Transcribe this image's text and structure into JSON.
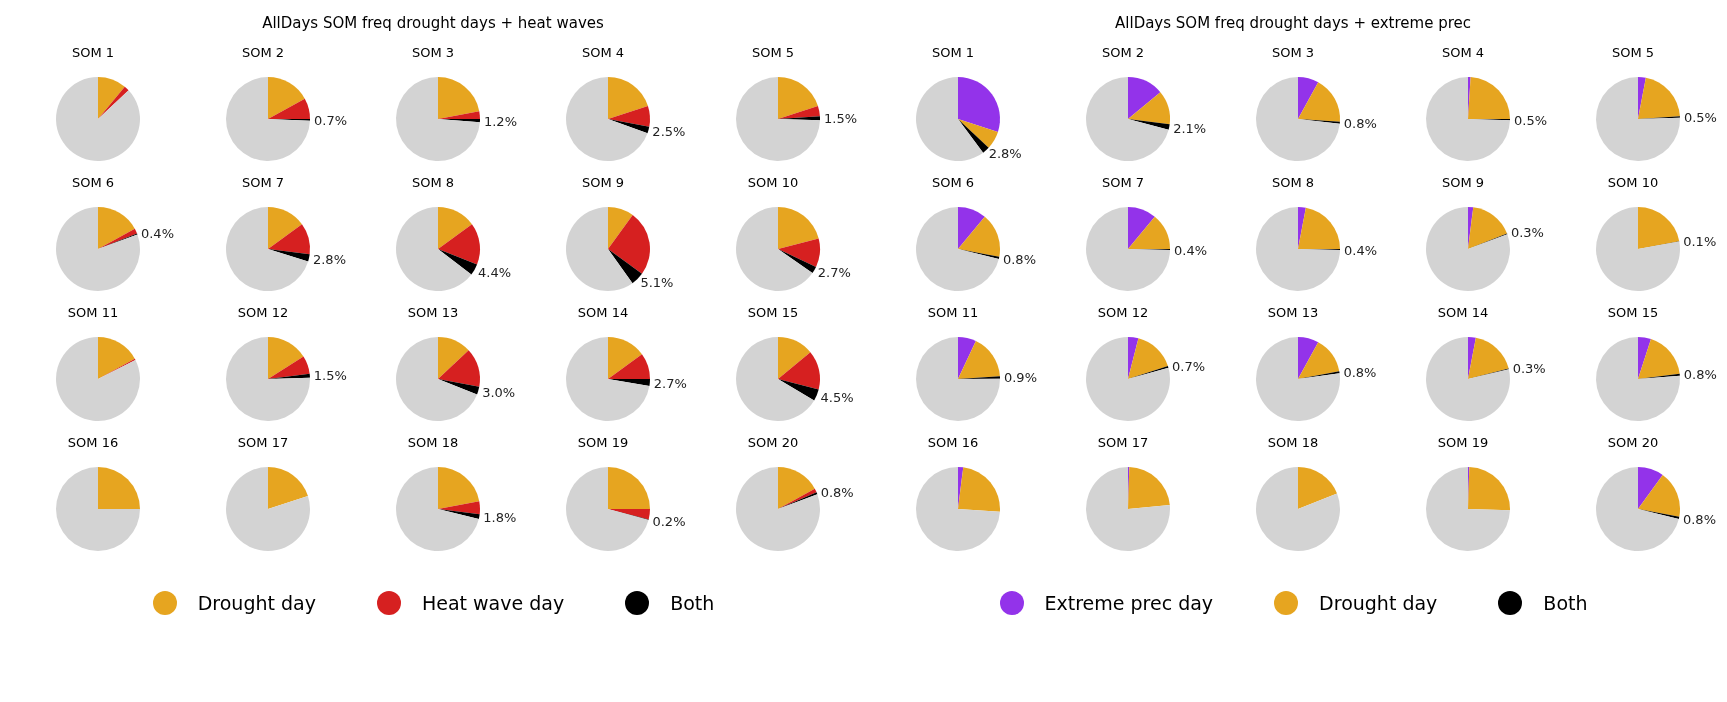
{
  "chart_data": [
    {
      "type": "pie",
      "title": "SOM 1",
      "annotations": [
        "AllDays SOM freq drought days + heat waves"
      ],
      "legend": "bottom",
      "categories": [
        "Drought day",
        "Heat wave day",
        "Both",
        null
      ],
      "colors": [
        "#e6a520",
        "#d62020",
        "#000000",
        "#d3d3d3"
      ],
      "values": [
        11,
        2,
        0,
        87
      ]
    },
    {
      "type": "pie",
      "title": "SOM 2",
      "categories": [
        null,
        null,
        null,
        null
      ],
      "colors": [
        "#e6a520",
        "#d62020",
        "#000000",
        "#d3d3d3"
      ],
      "values": [
        17,
        8,
        0.7,
        74.3
      ],
      "value_labels": [
        null,
        null,
        "0.7%",
        null
      ]
    },
    {
      "type": "pie",
      "title": "SOM 3",
      "categories": [
        null,
        null,
        null,
        null
      ],
      "colors": [
        "#e6a520",
        "#d62020",
        "#000000",
        "#d3d3d3"
      ],
      "values": [
        22,
        3,
        1.2,
        73.8
      ],
      "value_labels": [
        null,
        null,
        "1.2%",
        null
      ]
    },
    {
      "type": "pie",
      "title": "SOM 4",
      "categories": [
        null,
        null,
        null,
        null
      ],
      "colors": [
        "#e6a520",
        "#d62020",
        "#000000",
        "#d3d3d3"
      ],
      "values": [
        20,
        8,
        2.5,
        69.5
      ],
      "value_labels": [
        null,
        null,
        "2.5%",
        null
      ]
    },
    {
      "type": "pie",
      "title": "SOM 5",
      "categories": [
        null,
        null,
        null,
        null
      ],
      "colors": [
        "#e6a520",
        "#d62020",
        "#000000",
        "#d3d3d3"
      ],
      "values": [
        20,
        4,
        1.5,
        74.5
      ],
      "value_labels": [
        null,
        null,
        "1.5%",
        null
      ]
    },
    {
      "type": "pie",
      "title": "SOM 6",
      "categories": [
        null,
        null,
        null,
        null
      ],
      "colors": [
        "#e6a520",
        "#d62020",
        "#000000",
        "#d3d3d3"
      ],
      "values": [
        17,
        2,
        0.4,
        80.6
      ],
      "value_labels": [
        null,
        null,
        "0.4%",
        null
      ]
    },
    {
      "type": "pie",
      "title": "SOM 7",
      "categories": [
        null,
        null,
        null,
        null
      ],
      "colors": [
        "#e6a520",
        "#d62020",
        "#000000",
        "#d3d3d3"
      ],
      "values": [
        15,
        12,
        2.8,
        70.2
      ],
      "value_labels": [
        null,
        null,
        "2.8%",
        null
      ]
    },
    {
      "type": "pie",
      "title": "SOM 8",
      "categories": [
        null,
        null,
        null,
        null
      ],
      "colors": [
        "#e6a520",
        "#d62020",
        "#000000",
        "#d3d3d3"
      ],
      "values": [
        15,
        16,
        4.4,
        64.6
      ],
      "value_labels": [
        null,
        null,
        "4.4%",
        null
      ]
    },
    {
      "type": "pie",
      "title": "SOM 9",
      "categories": [
        null,
        null,
        null,
        null
      ],
      "colors": [
        "#e6a520",
        "#d62020",
        "#000000",
        "#d3d3d3"
      ],
      "values": [
        10,
        25,
        5.1,
        59.9
      ],
      "value_labels": [
        null,
        null,
        "5.1%",
        null
      ]
    },
    {
      "type": "pie",
      "title": "SOM 10",
      "categories": [
        null,
        null,
        null,
        null
      ],
      "colors": [
        "#e6a520",
        "#d62020",
        "#000000",
        "#d3d3d3"
      ],
      "values": [
        21,
        11,
        2.7,
        65.3
      ],
      "value_labels": [
        null,
        null,
        "2.7%",
        null
      ]
    },
    {
      "type": "pie",
      "title": "SOM 11",
      "categories": [
        null,
        null,
        null,
        null
      ],
      "colors": [
        "#e6a520",
        "#d62020",
        "#000000",
        "#d3d3d3"
      ],
      "values": [
        17,
        0.5,
        0,
        82.5
      ]
    },
    {
      "type": "pie",
      "title": "SOM 12",
      "categories": [
        null,
        null,
        null,
        null
      ],
      "colors": [
        "#e6a520",
        "#d62020",
        "#000000",
        "#d3d3d3"
      ],
      "values": [
        16,
        7,
        1.5,
        75.5
      ],
      "value_labels": [
        null,
        null,
        "1.5%",
        null
      ]
    },
    {
      "type": "pie",
      "title": "SOM 13",
      "categories": [
        null,
        null,
        null,
        null
      ],
      "colors": [
        "#e6a520",
        "#d62020",
        "#000000",
        "#d3d3d3"
      ],
      "values": [
        13,
        15,
        3.0,
        69
      ],
      "value_labels": [
        null,
        null,
        "3.0%",
        null
      ]
    },
    {
      "type": "pie",
      "title": "SOM 14",
      "categories": [
        null,
        null,
        null,
        null
      ],
      "colors": [
        "#e6a520",
        "#d62020",
        "#000000",
        "#d3d3d3"
      ],
      "values": [
        15,
        10,
        2.7,
        72.3
      ],
      "value_labels": [
        null,
        null,
        "2.7%",
        null
      ]
    },
    {
      "type": "pie",
      "title": "SOM 15",
      "categories": [
        null,
        null,
        null,
        null
      ],
      "colors": [
        "#e6a520",
        "#d62020",
        "#000000",
        "#d3d3d3"
      ],
      "values": [
        14,
        15,
        4.5,
        66.5
      ],
      "value_labels": [
        null,
        null,
        "4.5%",
        null
      ]
    },
    {
      "type": "pie",
      "title": "SOM 16",
      "categories": [
        null,
        null,
        null,
        null
      ],
      "colors": [
        "#e6a520",
        "#d62020",
        "#000000",
        "#d3d3d3"
      ],
      "values": [
        25,
        0,
        0,
        75
      ]
    },
    {
      "type": "pie",
      "title": "SOM 17",
      "categories": [
        null,
        null,
        null,
        null
      ],
      "colors": [
        "#e6a520",
        "#d62020",
        "#000000",
        "#d3d3d3"
      ],
      "values": [
        20,
        0,
        0,
        80
      ]
    },
    {
      "type": "pie",
      "title": "SOM 18",
      "categories": [
        null,
        null,
        null,
        null
      ],
      "colors": [
        "#e6a520",
        "#d62020",
        "#000000",
        "#d3d3d3"
      ],
      "values": [
        22,
        5,
        1.8,
        71.2
      ],
      "value_labels": [
        null,
        null,
        "1.8%",
        null
      ]
    },
    {
      "type": "pie",
      "title": "SOM 19",
      "categories": [
        null,
        null,
        null,
        null
      ],
      "colors": [
        "#e6a520",
        "#d62020",
        "#000000",
        "#d3d3d3"
      ],
      "values": [
        25,
        4,
        0.2,
        70.8
      ],
      "value_labels": [
        null,
        null,
        "0.2%",
        null
      ]
    },
    {
      "type": "pie",
      "title": "SOM 20",
      "categories": [
        null,
        null,
        null,
        null
      ],
      "colors": [
        "#e6a520",
        "#d62020",
        "#000000",
        "#d3d3d3"
      ],
      "values": [
        17,
        1.5,
        0.8,
        80.7
      ],
      "value_labels": [
        null,
        null,
        "0.8%",
        null
      ]
    },
    {
      "type": "pie",
      "title": "SOM 1",
      "annotations": [
        "AllDays SOM freq drought days + extreme prec"
      ],
      "legend": "bottom",
      "categories": [
        "Extreme prec day",
        "Drought day",
        "Both",
        null
      ],
      "colors": [
        "#9333ea",
        "#e6a520",
        "#000000",
        "#d3d3d3"
      ],
      "values": [
        30,
        7,
        2.8,
        60.2
      ],
      "value_labels": [
        null,
        null,
        "2.8%",
        null
      ]
    },
    {
      "type": "pie",
      "title": "SOM 2",
      "categories": [
        null,
        null,
        null,
        null
      ],
      "colors": [
        "#9333ea",
        "#e6a520",
        "#000000",
        "#d3d3d3"
      ],
      "values": [
        14,
        13,
        2.1,
        70.9
      ],
      "value_labels": [
        null,
        null,
        "2.1%",
        null
      ]
    },
    {
      "type": "pie",
      "title": "SOM 3",
      "categories": [
        null,
        null,
        null,
        null
      ],
      "colors": [
        "#9333ea",
        "#e6a520",
        "#000000",
        "#d3d3d3"
      ],
      "values": [
        8,
        18,
        0.8,
        73.2
      ],
      "value_labels": [
        null,
        null,
        "0.8%",
        null
      ]
    },
    {
      "type": "pie",
      "title": "SOM 4",
      "categories": [
        null,
        null,
        null,
        null
      ],
      "colors": [
        "#9333ea",
        "#e6a520",
        "#000000",
        "#d3d3d3"
      ],
      "values": [
        1,
        24,
        0.5,
        74.5
      ],
      "value_labels": [
        null,
        null,
        "0.5%",
        null
      ]
    },
    {
      "type": "pie",
      "title": "SOM 5",
      "categories": [
        null,
        null,
        null,
        null
      ],
      "colors": [
        "#9333ea",
        "#e6a520",
        "#000000",
        "#d3d3d3"
      ],
      "values": [
        3,
        21,
        0.5,
        75.5
      ],
      "value_labels": [
        null,
        null,
        "0.5%",
        null
      ]
    },
    {
      "type": "pie",
      "title": "SOM 6",
      "categories": [
        null,
        null,
        null,
        null
      ],
      "colors": [
        "#9333ea",
        "#e6a520",
        "#000000",
        "#d3d3d3"
      ],
      "values": [
        11,
        17,
        0.8,
        71.2
      ],
      "value_labels": [
        null,
        null,
        "0.8%",
        null
      ]
    },
    {
      "type": "pie",
      "title": "SOM 7",
      "categories": [
        null,
        null,
        null,
        null
      ],
      "colors": [
        "#9333ea",
        "#e6a520",
        "#000000",
        "#d3d3d3"
      ],
      "values": [
        11,
        14,
        0.4,
        74.6
      ],
      "value_labels": [
        null,
        null,
        "0.4%",
        null
      ]
    },
    {
      "type": "pie",
      "title": "SOM 8",
      "categories": [
        null,
        null,
        null,
        null
      ],
      "colors": [
        "#9333ea",
        "#e6a520",
        "#000000",
        "#d3d3d3"
      ],
      "values": [
        3,
        22,
        0.4,
        74.6
      ],
      "value_labels": [
        null,
        null,
        "0.4%",
        null
      ]
    },
    {
      "type": "pie",
      "title": "SOM 9",
      "categories": [
        null,
        null,
        null,
        null
      ],
      "colors": [
        "#9333ea",
        "#e6a520",
        "#000000",
        "#d3d3d3"
      ],
      "values": [
        2,
        17,
        0.3,
        80.7
      ],
      "value_labels": [
        null,
        null,
        "0.3%",
        null
      ]
    },
    {
      "type": "pie",
      "title": "SOM 10",
      "categories": [
        null,
        null,
        null,
        null
      ],
      "colors": [
        "#9333ea",
        "#e6a520",
        "#000000",
        "#d3d3d3"
      ],
      "values": [
        0,
        22,
        0.1,
        77.9
      ],
      "value_labels": [
        null,
        null,
        "0.1%",
        null
      ]
    },
    {
      "type": "pie",
      "title": "SOM 11",
      "categories": [
        null,
        null,
        null,
        null
      ],
      "colors": [
        "#9333ea",
        "#e6a520",
        "#000000",
        "#d3d3d3"
      ],
      "values": [
        7,
        17,
        0.9,
        75.1
      ],
      "value_labels": [
        null,
        null,
        "0.9%",
        null
      ]
    },
    {
      "type": "pie",
      "title": "SOM 12",
      "categories": [
        null,
        null,
        null,
        null
      ],
      "colors": [
        "#9333ea",
        "#e6a520",
        "#000000",
        "#d3d3d3"
      ],
      "values": [
        4,
        16,
        0.7,
        79.3
      ],
      "value_labels": [
        null,
        null,
        "0.7%",
        null
      ]
    },
    {
      "type": "pie",
      "title": "SOM 13",
      "categories": [
        null,
        null,
        null,
        null
      ],
      "colors": [
        "#9333ea",
        "#e6a520",
        "#000000",
        "#d3d3d3"
      ],
      "values": [
        8,
        14,
        0.8,
        77.2
      ],
      "value_labels": [
        null,
        null,
        "0.8%",
        null
      ]
    },
    {
      "type": "pie",
      "title": "SOM 14",
      "categories": [
        null,
        null,
        null,
        null
      ],
      "colors": [
        "#9333ea",
        "#e6a520",
        "#000000",
        "#d3d3d3"
      ],
      "values": [
        3,
        18,
        0.3,
        78.7
      ],
      "value_labels": [
        null,
        null,
        "0.3%",
        null
      ]
    },
    {
      "type": "pie",
      "title": "SOM 15",
      "categories": [
        null,
        null,
        null,
        null
      ],
      "colors": [
        "#9333ea",
        "#e6a520",
        "#000000",
        "#d3d3d3"
      ],
      "values": [
        5,
        18,
        0.8,
        76.2
      ],
      "value_labels": [
        null,
        null,
        "0.8%",
        null
      ]
    },
    {
      "type": "pie",
      "title": "SOM 16",
      "categories": [
        null,
        null,
        null,
        null
      ],
      "colors": [
        "#9333ea",
        "#e6a520",
        "#000000",
        "#d3d3d3"
      ],
      "values": [
        2,
        24,
        0,
        74
      ]
    },
    {
      "type": "pie",
      "title": "SOM 17",
      "categories": [
        null,
        null,
        null,
        null
      ],
      "colors": [
        "#9333ea",
        "#e6a520",
        "#000000",
        "#d3d3d3"
      ],
      "values": [
        0.5,
        23,
        0,
        76.5
      ]
    },
    {
      "type": "pie",
      "title": "SOM 18",
      "categories": [
        null,
        null,
        null,
        null
      ],
      "colors": [
        "#9333ea",
        "#e6a520",
        "#000000",
        "#d3d3d3"
      ],
      "values": [
        0,
        19,
        0,
        81
      ]
    },
    {
      "type": "pie",
      "title": "SOM 19",
      "categories": [
        null,
        null,
        null,
        null
      ],
      "colors": [
        "#9333ea",
        "#e6a520",
        "#000000",
        "#d3d3d3"
      ],
      "values": [
        0.5,
        25,
        0,
        74.5
      ]
    },
    {
      "type": "pie",
      "title": "SOM 20",
      "categories": [
        null,
        null,
        null,
        null
      ],
      "colors": [
        "#9333ea",
        "#e6a520",
        "#000000",
        "#d3d3d3"
      ],
      "values": [
        10,
        18,
        0.8,
        71.2
      ],
      "value_labels": [
        null,
        null,
        "0.8%",
        null
      ]
    }
  ]
}
